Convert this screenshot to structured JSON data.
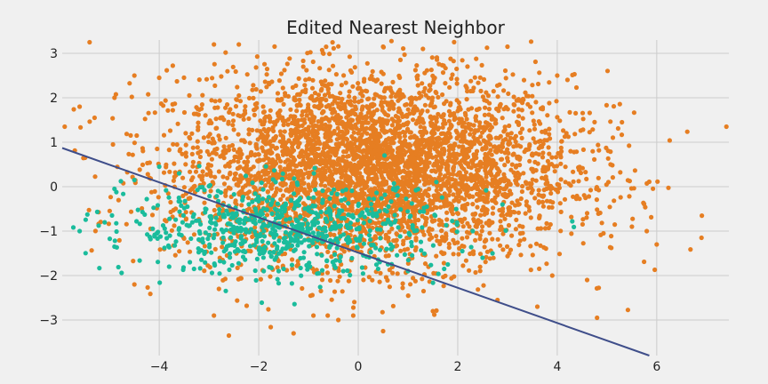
{
  "chart_data": {
    "type": "scatter",
    "title": "Edited Nearest Neighbor",
    "xlabel": "",
    "ylabel": "",
    "xlim": [
      -5.95,
      7.45
    ],
    "ylim": [
      -3.8,
      3.3
    ],
    "xticks": [
      -4,
      -2,
      0,
      2,
      4,
      6
    ],
    "xtick_labels": [
      "−4",
      "−2",
      "0",
      "2",
      "4",
      "6"
    ],
    "yticks": [
      -3,
      -2,
      -1,
      0,
      1,
      2,
      3
    ],
    "ytick_labels": [
      "−3",
      "−2",
      "−1",
      "0",
      "1",
      "2",
      "3"
    ],
    "grid": true,
    "series": [
      {
        "class_id": "majority",
        "color": "#e67e22",
        "count": 4200,
        "center": [
          0.3,
          0.4
        ],
        "spread": [
          2.0,
          1.05
        ],
        "points": [
          [
            -5.4,
            3.25
          ],
          [
            -5.3,
            1.55
          ],
          [
            -5.6,
            1.8
          ],
          [
            -5.9,
            1.35
          ],
          [
            -5.5,
            0.65
          ],
          [
            -4.9,
            2.0
          ],
          [
            -4.5,
            2.5
          ],
          [
            -4.0,
            2.45
          ],
          [
            -2.9,
            3.2
          ],
          [
            -2.4,
            3.2
          ],
          [
            0.5,
            3.15
          ],
          [
            1.3,
            3.1
          ],
          [
            3.0,
            3.15
          ],
          [
            4.0,
            2.5
          ],
          [
            5.3,
            1.45
          ],
          [
            7.4,
            1.35
          ],
          [
            6.9,
            -1.15
          ],
          [
            6.0,
            -1.3
          ],
          [
            5.8,
            -1.0
          ],
          [
            5.5,
            -0.9
          ],
          [
            -2.6,
            -3.35
          ],
          [
            -2.9,
            -2.9
          ],
          [
            -1.3,
            -3.3
          ],
          [
            -0.9,
            -2.9
          ],
          [
            -0.4,
            -3.0
          ],
          [
            -0.1,
            -2.9
          ],
          [
            0.5,
            -3.25
          ],
          [
            1.5,
            -2.8
          ],
          [
            2.8,
            -2.55
          ],
          [
            3.6,
            -2.7
          ],
          [
            4.8,
            -2.95
          ],
          [
            4.6,
            -2.1
          ],
          [
            3.9,
            -2.0
          ],
          [
            -4.5,
            -2.2
          ],
          [
            -2.8,
            -2.3
          ]
        ]
      },
      {
        "class_id": "minority",
        "color": "#1abc9c",
        "count": 700,
        "center": [
          -1.4,
          -0.95
        ],
        "spread": [
          1.6,
          0.5
        ],
        "points": [
          [
            -5.6,
            -1.0
          ],
          [
            -4.9,
            -1.35
          ],
          [
            -4.9,
            -0.05
          ],
          [
            -4.5,
            0.15
          ],
          [
            -4.0,
            0.45
          ],
          [
            -3.6,
            0.3
          ],
          [
            -3.8,
            -1.8
          ],
          [
            -3.3,
            -1.85
          ],
          [
            -2.7,
            -1.7
          ],
          [
            -1.9,
            -1.9
          ],
          [
            -1.5,
            -1.85
          ],
          [
            -1.1,
            -1.6
          ],
          [
            -0.3,
            -1.9
          ],
          [
            0.4,
            -1.85
          ],
          [
            1.0,
            -1.9
          ],
          [
            1.8,
            -1.75
          ],
          [
            2.5,
            -1.6
          ],
          [
            2.9,
            -0.4
          ],
          [
            2.7,
            -1.5
          ],
          [
            2.3,
            -1.0
          ]
        ]
      }
    ],
    "decision_line": {
      "color": "#3f4e8a",
      "x": [
        -5.95,
        5.85
      ],
      "y": [
        0.87,
        -3.8
      ]
    }
  }
}
